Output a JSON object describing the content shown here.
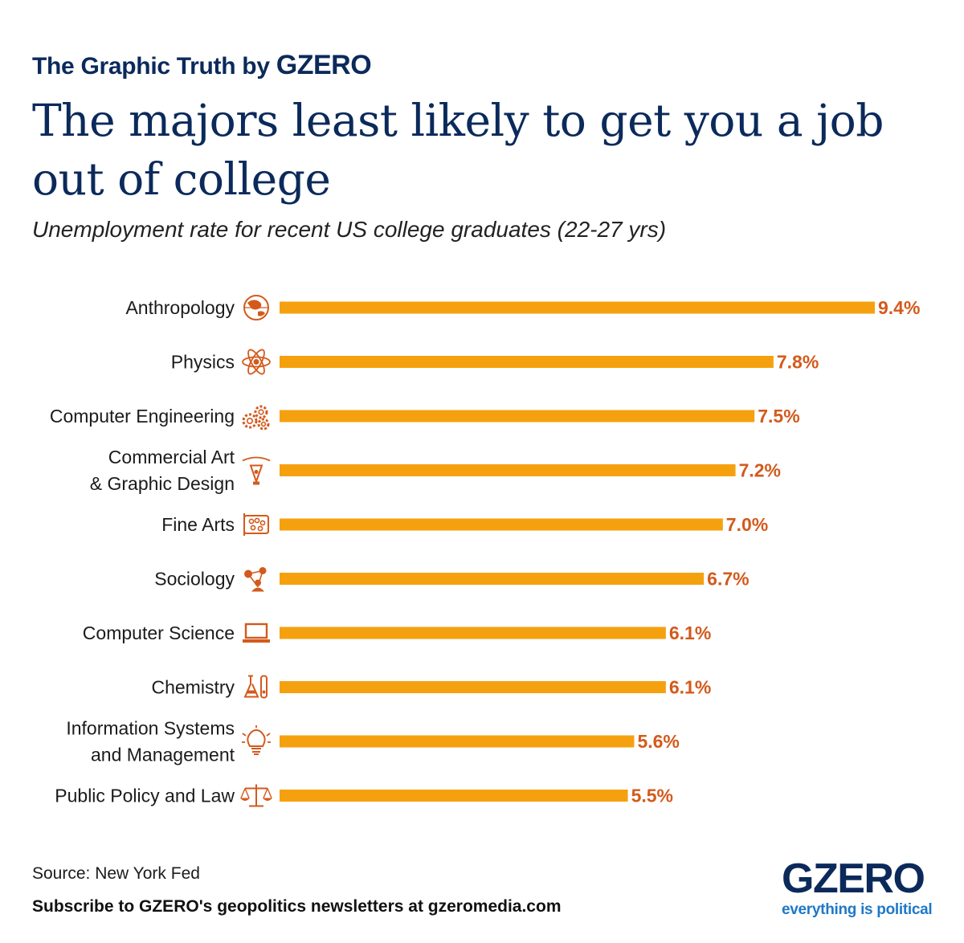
{
  "header": {
    "kicker": "The Graphic Truth by ",
    "kicker_brand": "GZERO",
    "title": "The majors least likely to get you a job out of college",
    "subtitle": "Unemployment rate for recent US college graduates (22-27 yrs)"
  },
  "chart_data": {
    "type": "bar",
    "orientation": "horizontal",
    "categories": [
      [
        "Anthropology"
      ],
      [
        "Physics"
      ],
      [
        "Computer Engineering"
      ],
      [
        "Commercial Art",
        "& Graphic Design"
      ],
      [
        "Fine Arts"
      ],
      [
        "Sociology"
      ],
      [
        "Computer Science"
      ],
      [
        "Chemistry"
      ],
      [
        "Information Systems",
        "and Management"
      ],
      [
        "Public Policy and Law"
      ]
    ],
    "values": [
      9.4,
      7.8,
      7.5,
      7.2,
      7.0,
      6.7,
      6.1,
      6.1,
      5.6,
      5.5
    ],
    "value_labels": [
      "9.4%",
      "7.8%",
      "7.5%",
      "7.2%",
      "7.0%",
      "6.7%",
      "6.1%",
      "6.1%",
      "5.6%",
      "5.5%"
    ],
    "icons": [
      "globe-icon",
      "atom-icon",
      "gears-icon",
      "pen-nib-icon",
      "palette-icon",
      "people-network-icon",
      "laptop-icon",
      "lab-flask-icon",
      "lightbulb-icon",
      "scales-icon"
    ],
    "unit": "%",
    "xlim": [
      0,
      9.4
    ],
    "grid": false,
    "bar_color": "#f5a10f",
    "label_color": "#d35a1c",
    "icon_color": "#d35a1c"
  },
  "footer": {
    "source": "Source: New York Fed",
    "subscribe": "Subscribe to GZERO's geopolitics newsletters at gzeromedia.com"
  },
  "logo": {
    "word": "GZERO",
    "tagline": "everything is political"
  }
}
